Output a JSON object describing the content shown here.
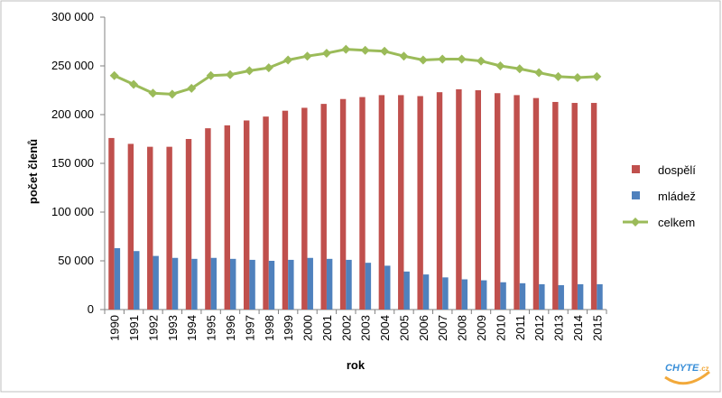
{
  "chart_data": {
    "type": "bar",
    "xlabel": "rok",
    "ylabel": "počet členů",
    "ylim": [
      0,
      300000
    ],
    "y_ticks": [
      0,
      50000,
      100000,
      150000,
      200000,
      250000,
      300000
    ],
    "y_tick_labels": [
      "0",
      "50 000",
      "100 000",
      "150 000",
      "200 000",
      "250 000",
      "300 000"
    ],
    "categories": [
      "1990",
      "1991",
      "1992",
      "1993",
      "1994",
      "1995",
      "1996",
      "1997",
      "1998",
      "1999",
      "2000",
      "2001",
      "2002",
      "2003",
      "2004",
      "2005",
      "2006",
      "2007",
      "2008",
      "2009",
      "2010",
      "2011",
      "2012",
      "2013",
      "2014",
      "2015"
    ],
    "series": [
      {
        "name": "dospělí",
        "kind": "bar",
        "color": "#c0504d",
        "values": [
          176000,
          170000,
          167000,
          167000,
          175000,
          186000,
          189000,
          194000,
          198000,
          204000,
          207000,
          211000,
          216000,
          218000,
          220000,
          220000,
          219000,
          223000,
          226000,
          225000,
          222000,
          220000,
          217000,
          213000,
          212000,
          212000
        ]
      },
      {
        "name": "mládež",
        "kind": "bar",
        "color": "#4f81bd",
        "values": [
          63000,
          60000,
          55000,
          53000,
          52000,
          53000,
          52000,
          51000,
          50000,
          51000,
          53000,
          52000,
          51000,
          48000,
          45000,
          39000,
          36000,
          33000,
          31000,
          30000,
          28000,
          27000,
          26000,
          25000,
          26000,
          26000
        ]
      },
      {
        "name": "celkem",
        "kind": "line",
        "marker": "diamond",
        "color": "#9bbb59",
        "values": [
          240000,
          231000,
          222000,
          221000,
          227000,
          240000,
          241000,
          245000,
          248000,
          256000,
          260000,
          263000,
          267000,
          266000,
          265000,
          260000,
          256000,
          257000,
          257000,
          255000,
          250000,
          247000,
          243000,
          239000,
          238000,
          239000
        ]
      }
    ],
    "legend_position": "right",
    "grid": false
  },
  "watermark": {
    "text": "CHYTE.cz"
  }
}
